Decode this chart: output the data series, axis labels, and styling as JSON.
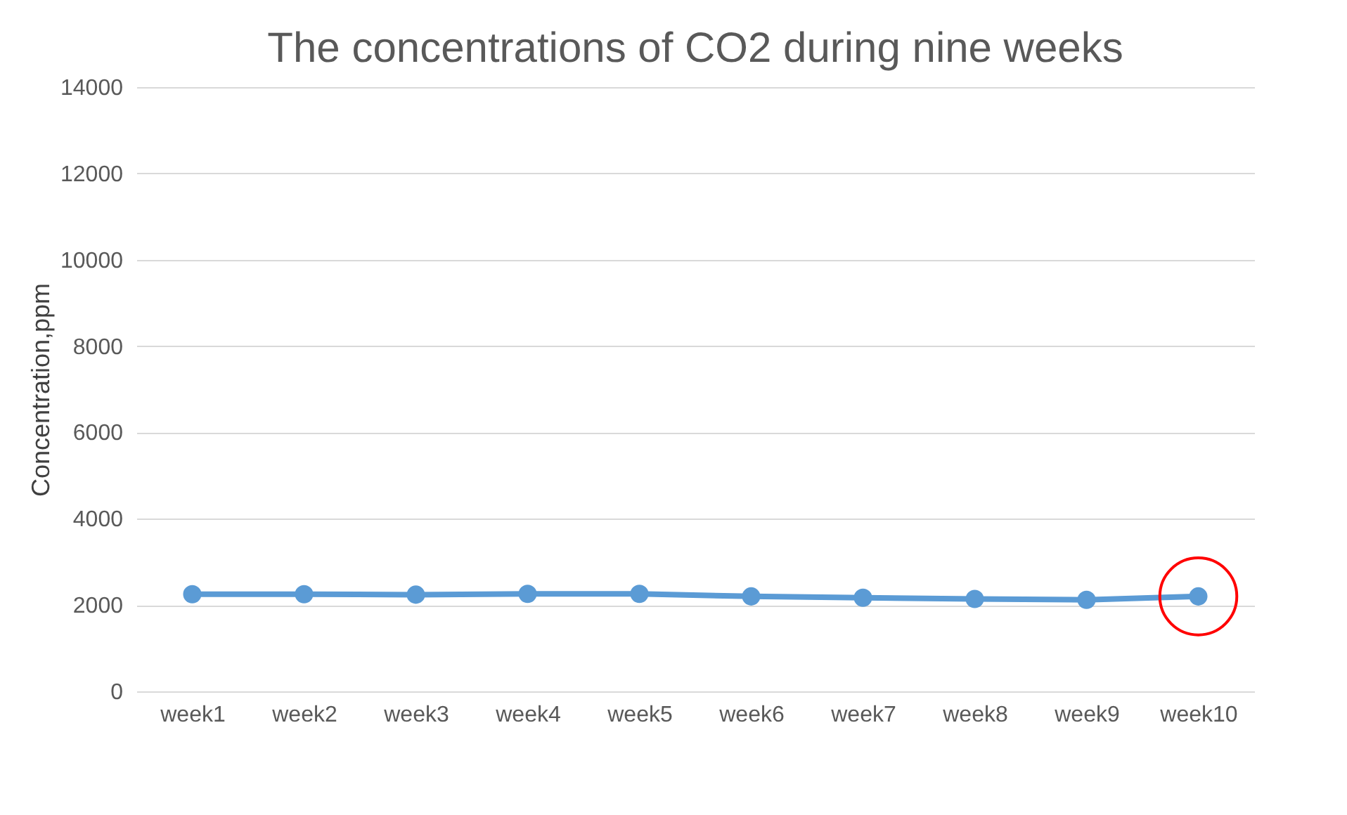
{
  "chart_data": {
    "type": "line",
    "title": "The concentrations of CO2 during nine weeks",
    "ylabel": "Concentration,ppm",
    "categories": [
      "week1",
      "week2",
      "week3",
      "week4",
      "week5",
      "week6",
      "week7",
      "week8",
      "week9",
      "week10"
    ],
    "series": [
      {
        "color": "#5b9bd5",
        "values": [
          2250,
          2250,
          2240,
          2260,
          2260,
          2200,
          2170,
          2140,
          2120,
          2200
        ]
      }
    ],
    "ylim": [
      0,
      14000
    ],
    "yticks": [
      0,
      2000,
      4000,
      6000,
      8000,
      10000,
      12000,
      14000
    ],
    "grid": "y",
    "marker": "circle",
    "line_style": "solid",
    "legend": false
  }
}
